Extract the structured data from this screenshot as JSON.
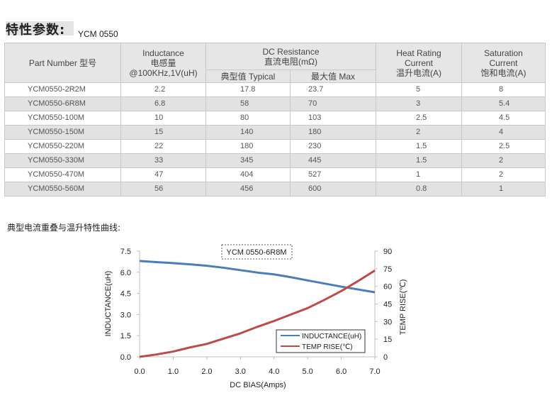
{
  "header": {
    "title": "特性参数:",
    "model": "YCM 0550"
  },
  "table": {
    "headers": {
      "part_number": "Part Number  型号",
      "inductance": [
        "Inductance",
        "电感量",
        "@100KHz,1V(uH)"
      ],
      "dc_resistance": [
        "DC Resistance",
        "直流电阻(mΩ)"
      ],
      "dcr_typical": "典型值 Typical",
      "dcr_max": "最大值  Max",
      "heat_rating": [
        "Heat Rating",
        "Current",
        "温升电流(A)"
      ],
      "saturation": [
        "Saturation",
        "Current",
        "饱和电流(A)"
      ]
    },
    "rows": [
      {
        "part": "YCM0550-2R2M",
        "ind": "2.2",
        "typ": "17.8",
        "max": "23.7",
        "heat": "5",
        "sat": "8"
      },
      {
        "part": "YCM0550-6R8M",
        "ind": "6.8",
        "typ": "58",
        "max": "70",
        "heat": "3",
        "sat": "5.4"
      },
      {
        "part": "YCM0550-100M",
        "ind": "10",
        "typ": "80",
        "max": "103",
        "heat": "2.5",
        "sat": "4.5"
      },
      {
        "part": "YCM0550-150M",
        "ind": "15",
        "typ": "140",
        "max": "180",
        "heat": "2",
        "sat": "4"
      },
      {
        "part": "YCM0550-220M",
        "ind": "22",
        "typ": "180",
        "max": "230",
        "heat": "1.5",
        "sat": "2.5"
      },
      {
        "part": "YCM0550-330M",
        "ind": "33",
        "typ": "345",
        "max": "445",
        "heat": "1.5",
        "sat": "2"
      },
      {
        "part": "YCM0550-470M",
        "ind": "47",
        "typ": "404",
        "max": "527",
        "heat": "1",
        "sat": "2"
      },
      {
        "part": "YCM0550-560M",
        "ind": "56",
        "typ": "456",
        "max": "600",
        "heat": "0.8",
        "sat": "1"
      }
    ]
  },
  "section_title": "典型电流重叠与温升特性曲线:",
  "chart_data": {
    "type": "line",
    "title": "YCM 0550-6R8M",
    "xlabel": "DC BIAS(Amps)",
    "ylabel_left": "INDUCTANCE(uH)",
    "ylabel_right": "TEMP RISE(℃)",
    "xlim": [
      0,
      7
    ],
    "ylim_left": [
      0,
      7.5
    ],
    "ylim_right": [
      0,
      90
    ],
    "x_ticks": [
      "0.0",
      "1.0",
      "2.0",
      "3.0",
      "4.0",
      "5.0",
      "6.0",
      "7.0"
    ],
    "y_left_ticks": [
      "0.0",
      "1.5",
      "3.0",
      "4.5",
      "6.0",
      "7.5"
    ],
    "y_right_ticks": [
      "0",
      "15",
      "30",
      "45",
      "60",
      "75",
      "90"
    ],
    "grid": false,
    "legend_position": "bottom-right",
    "series": [
      {
        "name": "INDUCTANCE(uH)",
        "axis": "left",
        "color": "#4a7ebb",
        "x": [
          0,
          0.5,
          1,
          1.5,
          2,
          2.5,
          3,
          3.5,
          4,
          4.5,
          5,
          5.5,
          6,
          6.5,
          7
        ],
        "y": [
          6.8,
          6.72,
          6.65,
          6.56,
          6.46,
          6.32,
          6.15,
          5.98,
          5.85,
          5.65,
          5.42,
          5.2,
          4.98,
          4.78,
          4.58
        ]
      },
      {
        "name": "TEMP RISE(℃)",
        "axis": "right",
        "color": "#be4b48",
        "x": [
          0,
          0.5,
          1,
          1.5,
          2,
          2.5,
          3,
          3.5,
          4,
          4.5,
          5,
          5.5,
          6,
          6.5,
          7
        ],
        "y": [
          0,
          2,
          4.5,
          8,
          11,
          15.5,
          20,
          25.5,
          30.5,
          36,
          41.5,
          48.5,
          56,
          64.5,
          73.5
        ]
      }
    ]
  }
}
